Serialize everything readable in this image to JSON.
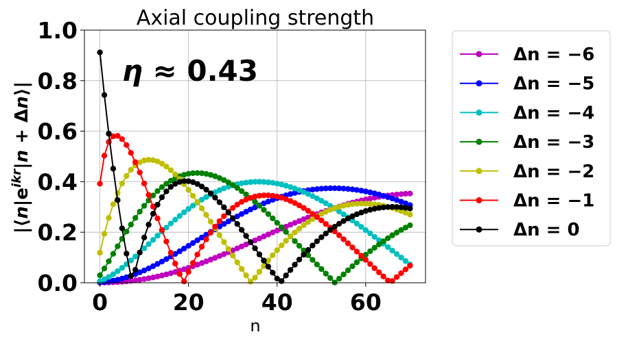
{
  "chart_data": {
    "type": "line",
    "title": "Axial coupling strength",
    "xlabel": "n",
    "ylabel": "|⟨n|e^{ikr}|n+Δn⟩|",
    "xlim": [
      -3.5,
      73.5
    ],
    "ylim": [
      0,
      1.0
    ],
    "xticks": [
      "0",
      "20",
      "40",
      "60"
    ],
    "yticks": [
      "0.0",
      "0.2",
      "0.4",
      "0.6",
      "0.8",
      "1.0"
    ],
    "grid": true,
    "legend_position": "outside-right",
    "annotation": "η ≈ 0.43",
    "eta": 0.43,
    "n_range": [
      0,
      70
    ],
    "series": [
      {
        "name": "Δn = −6",
        "dn": 6,
        "color": "#bf00bf"
      },
      {
        "name": "Δn = −5",
        "dn": 5,
        "color": "#0000ff"
      },
      {
        "name": "Δn = −4",
        "dn": 4,
        "color": "#00bfbf"
      },
      {
        "name": "Δn = −3",
        "dn": 3,
        "color": "#008000"
      },
      {
        "name": "Δn = −2",
        "dn": 2,
        "color": "#bfbf00"
      },
      {
        "name": "Δn = −1",
        "dn": 1,
        "color": "#ff0000"
      },
      {
        "name": "Δn = 0",
        "dn": 0,
        "color": "#000000"
      }
    ]
  }
}
